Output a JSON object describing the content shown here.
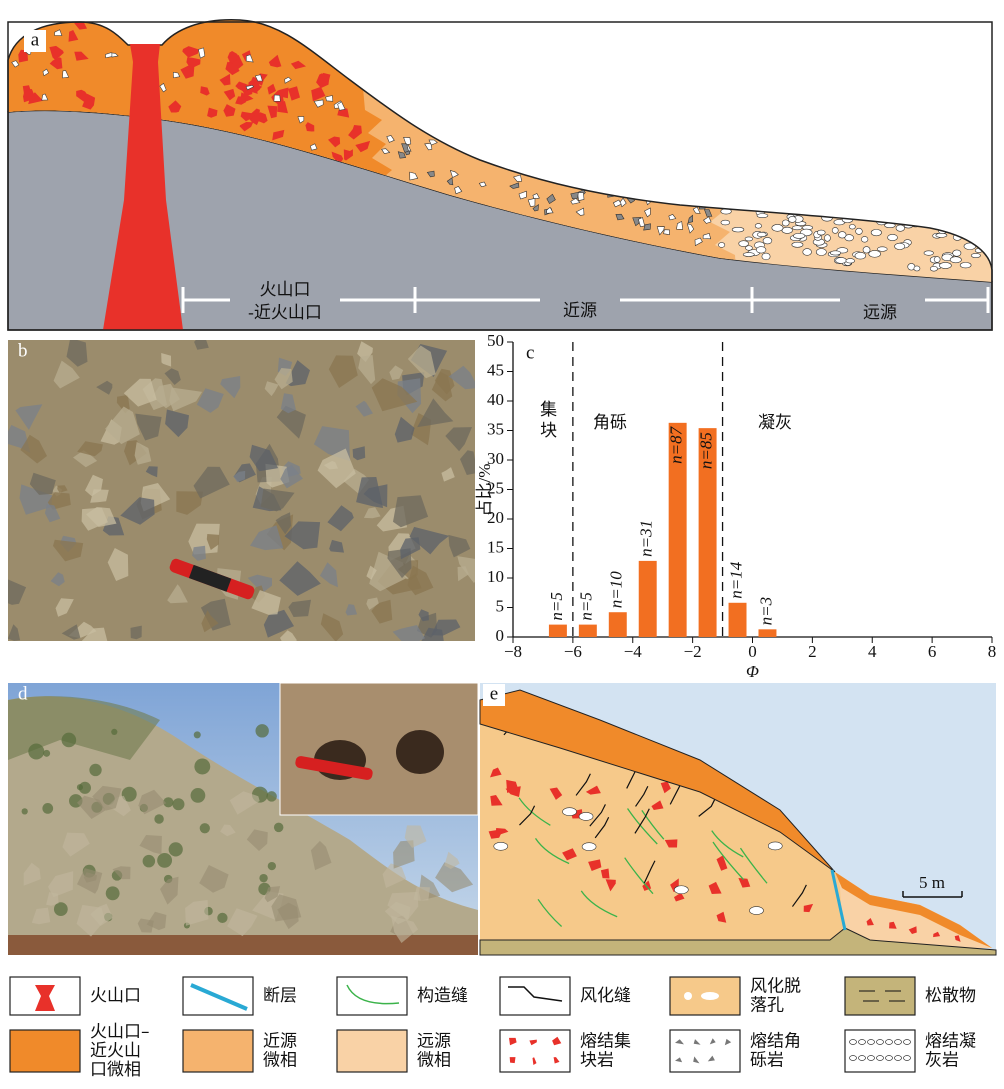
{
  "panel_a": {
    "label": "a",
    "zones": [
      [
        "火山口",
        "-近火山口"
      ],
      [
        "近源"
      ],
      [
        "远源"
      ]
    ]
  },
  "panel_b": {
    "label": "b"
  },
  "chart_data": {
    "type": "bar",
    "panel_label": "c",
    "x": [
      -6.5,
      -5.5,
      -4.5,
      -3.5,
      -2.5,
      -1.5,
      -0.5,
      0.5
    ],
    "values": [
      2.1,
      2.1,
      4.2,
      12.9,
      36.3,
      35.4,
      5.8,
      1.3
    ],
    "bar_labels": [
      "n=5",
      "n=5",
      "n=10",
      "n=31",
      "n=87",
      "n=85",
      "n=14",
      "n=3"
    ],
    "color": "#f26f21",
    "xlabel": "Φ",
    "ylabel": "占比/%",
    "xlim": [
      -8,
      8
    ],
    "ylim": [
      0,
      50
    ],
    "xticks": [
      {
        "value": -8,
        "label": "−8"
      },
      {
        "value": -6,
        "label": "−6"
      },
      {
        "value": -4,
        "label": "−4"
      },
      {
        "value": -2,
        "label": "−2"
      },
      0,
      2,
      4,
      6,
      8
    ],
    "yticks": [
      0,
      5,
      10,
      15,
      20,
      25,
      30,
      35,
      40,
      45,
      50
    ],
    "dividers": [
      -6,
      -1
    ],
    "regions": [
      "集块",
      "角砾",
      "凝灰"
    ]
  },
  "panel_d": {
    "label": "d"
  },
  "panel_e": {
    "label": "e",
    "scale": "5 m"
  },
  "legend": [
    {
      "lines": [
        "火山口"
      ]
    },
    {
      "lines": [
        "断层"
      ]
    },
    {
      "lines": [
        "构造缝"
      ]
    },
    {
      "lines": [
        "风化缝"
      ]
    },
    {
      "lines": [
        "风化脱",
        "落孔"
      ]
    },
    {
      "lines": [
        "松散物"
      ]
    },
    {
      "lines": [
        "火山口–",
        "近火山",
        "口微相"
      ]
    },
    {
      "lines": [
        "近源",
        "微相"
      ]
    },
    {
      "lines": [
        "远源",
        "微相"
      ]
    },
    {
      "lines": [
        "熔结集",
        "块岩"
      ]
    },
    {
      "lines": [
        "熔结角",
        "砾岩"
      ]
    },
    {
      "lines": [
        "熔结凝",
        "灰岩"
      ]
    }
  ]
}
